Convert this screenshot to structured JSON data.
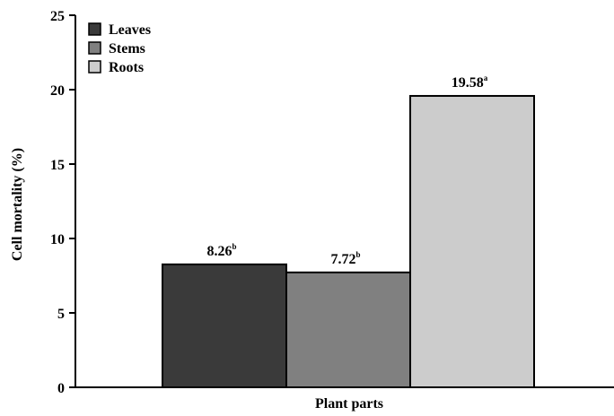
{
  "chart_data": {
    "type": "bar",
    "categories": [
      "Plant parts"
    ],
    "series": [
      {
        "name": "Leaves",
        "values": [
          8.26
        ],
        "label": "8.26",
        "sup": "b",
        "color": "#3a3a3a"
      },
      {
        "name": "Stems",
        "values": [
          7.72
        ],
        "label": "7.72",
        "sup": "b",
        "color": "#808080"
      },
      {
        "name": "Roots",
        "values": [
          19.58
        ],
        "label": "19.58",
        "sup": "a",
        "color": "#cccccc"
      }
    ],
    "xlabel": "Plant parts",
    "ylabel": "Cell mortality (%)",
    "ylim": [
      0,
      25
    ],
    "yticks": [
      "0",
      "5",
      "10",
      "15",
      "20",
      "25"
    ],
    "grid": false,
    "legend_position": "top-left"
  }
}
